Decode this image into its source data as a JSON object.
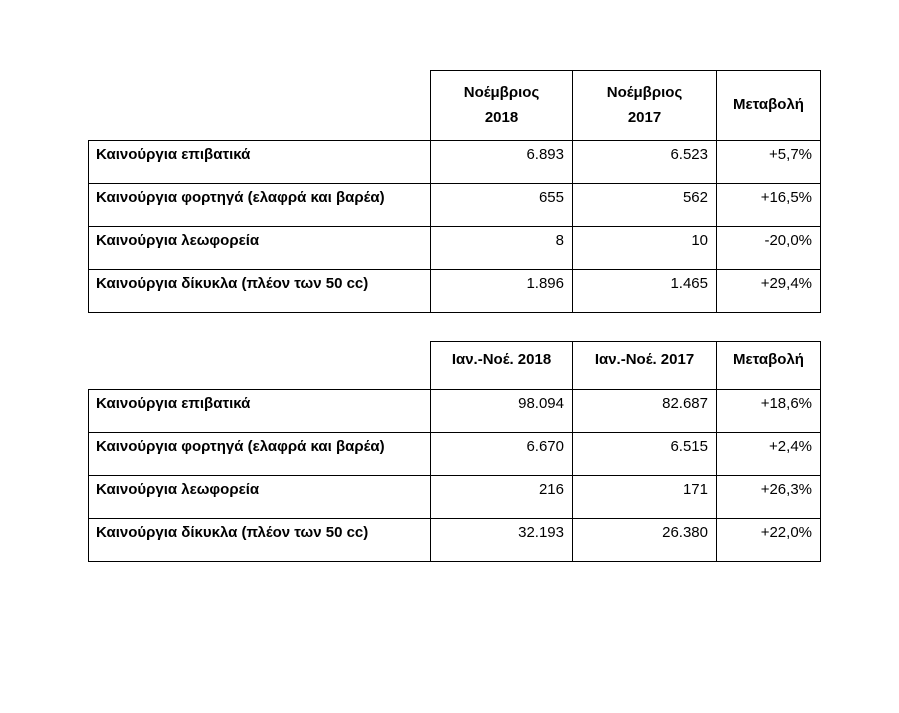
{
  "colors": {
    "background": "#ffffff",
    "border": "#000000",
    "text": "#000000"
  },
  "monthly_table": {
    "headers": {
      "period_2018_line1": "Νοέμβριος",
      "period_2018_line2": "2018",
      "period_2017_line1": "Νοέμβριος",
      "period_2017_line2": "2017",
      "change": "Μεταβολή"
    },
    "rows": [
      {
        "label": "Καινούργια επιβατικά",
        "value_2018": "6.893",
        "value_2017": "6.523",
        "change": "+5,7%"
      },
      {
        "label": "Καινούργια φορτηγά (ελαφρά και βαρέα)",
        "value_2018": "655",
        "value_2017": "562",
        "change": "+16,5%"
      },
      {
        "label": "Καινούργια λεωφορεία",
        "value_2018": "8",
        "value_2017": "10",
        "change": "-20,0%"
      },
      {
        "label": "Καινούργια δίκυκλα (πλέον των 50 cc)",
        "value_2018": "1.896",
        "value_2017": "1.465",
        "change": "+29,4%"
      }
    ]
  },
  "ytd_table": {
    "headers": {
      "period_2018": "Ιαν.-Νοέ. 2018",
      "period_2017": "Ιαν.-Νοέ. 2017",
      "change": "Μεταβολή"
    },
    "rows": [
      {
        "label": "Καινούργια επιβατικά",
        "value_2018": "98.094",
        "value_2017": "82.687",
        "change": "+18,6%"
      },
      {
        "label": "Καινούργια φορτηγά (ελαφρά και βαρέα)",
        "value_2018": "6.670",
        "value_2017": "6.515",
        "change": "+2,4%"
      },
      {
        "label": "Καινούργια λεωφορεία",
        "value_2018": "216",
        "value_2017": "171",
        "change": "+26,3%"
      },
      {
        "label": "Καινούργια δίκυκλα (πλέον των 50 cc)",
        "value_2018": "32.193",
        "value_2017": "26.380",
        "change": "+22,0%"
      }
    ]
  }
}
